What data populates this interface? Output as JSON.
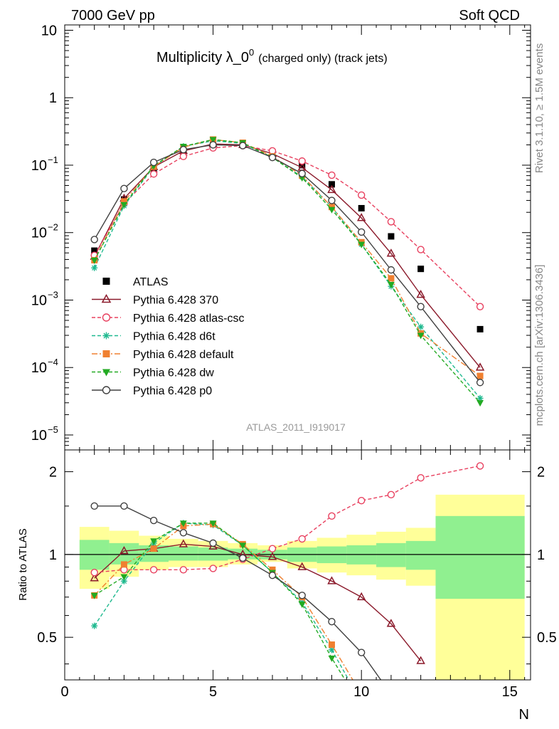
{
  "header": {
    "left": "7000 GeV pp",
    "right": "Soft QCD"
  },
  "side_labels": {
    "rivet": "Rivet 3.1.10, ≥ 1.5M events",
    "mcplots": "mcplots.cern.ch [arXiv:1306.3436]"
  },
  "chart_data": [
    {
      "type": "scatter",
      "title": "Multiplicity λ_0",
      "title_sup": "0",
      "subtitle": "(charged only) (track jets)",
      "watermark": "ATLAS_2011_I919017",
      "yscale": "log",
      "xlim": [
        0,
        15.7
      ],
      "ylim": [
        6e-06,
        12
      ],
      "yticks": [
        {
          "v": 10,
          "label": "10",
          "sup": ""
        },
        {
          "v": 1,
          "label": "1",
          "sup": ""
        },
        {
          "v": 0.1,
          "label": "10",
          "sup": "−1"
        },
        {
          "v": 0.01,
          "label": "10",
          "sup": "−2"
        },
        {
          "v": 0.001,
          "label": "10",
          "sup": "−3"
        },
        {
          "v": 0.0001,
          "label": "10",
          "sup": "−4"
        },
        {
          "v": 1e-05,
          "label": "10",
          "sup": "−5"
        }
      ],
      "legend_position": "middle-left",
      "x": [
        1,
        2,
        3,
        4,
        5,
        6,
        7,
        8,
        9,
        10,
        11,
        12,
        14
      ],
      "series": [
        {
          "name": "ATLAS",
          "color": "#000000",
          "marker": "square",
          "line": "none",
          "values": [
            0.0054,
            0.031,
            0.09,
            0.15,
            0.2,
            0.2,
            0.15,
            0.1,
            0.052,
            0.023,
            0.0088,
            0.0029,
            0.00037
          ]
        },
        {
          "name": "Pythia 6.428 370",
          "color": "#8b1a2b",
          "marker": "triangle-open",
          "line": "solid",
          "values": [
            0.0044,
            0.032,
            0.094,
            0.163,
            0.206,
            0.2,
            0.148,
            0.092,
            0.043,
            0.0165,
            0.0049,
            0.0012,
            0.0001
          ]
        },
        {
          "name": "Pythia 6.428 atlas-csc",
          "color": "#e8405f",
          "marker": "circle-open",
          "line": "dashed",
          "values": [
            0.0046,
            0.027,
            0.074,
            0.135,
            0.18,
            0.195,
            0.163,
            0.115,
            0.071,
            0.036,
            0.0145,
            0.0056,
            0.0008
          ]
        },
        {
          "name": "Pythia 6.428 d6t",
          "color": "#1fb98f",
          "marker": "star",
          "line": "dashed",
          "values": [
            0.003,
            0.025,
            0.095,
            0.19,
            0.23,
            0.21,
            0.13,
            0.067,
            0.024,
            0.0067,
            0.0016,
            0.0004,
            3.5e-05
          ]
        },
        {
          "name": "Pythia 6.428 default",
          "color": "#f08030",
          "marker": "square",
          "line": "dashdot",
          "values": [
            0.0039,
            0.029,
            0.095,
            0.185,
            0.24,
            0.215,
            0.135,
            0.07,
            0.024,
            0.0072,
            0.0021,
            0.00032,
            7.5e-05
          ]
        },
        {
          "name": "Pythia 6.428 dw",
          "color": "#22aa22",
          "marker": "triangle-down",
          "line": "dashed",
          "values": [
            0.0039,
            0.026,
            0.098,
            0.19,
            0.24,
            0.215,
            0.13,
            0.065,
            0.022,
            0.0067,
            0.0017,
            0.0003,
            3e-05
          ]
        },
        {
          "name": "Pythia 6.428 p0",
          "color": "#404040",
          "marker": "circle-open",
          "line": "solid",
          "values": [
            0.0079,
            0.045,
            0.11,
            0.17,
            0.2,
            0.195,
            0.13,
            0.075,
            0.03,
            0.0102,
            0.0028,
            0.0008,
            6e-05
          ]
        }
      ]
    },
    {
      "type": "line",
      "ylabel": "Ratio to ATLAS",
      "xlabel": "N",
      "yscale": "log",
      "xlim": [
        0,
        15.7
      ],
      "ylim": [
        0.35,
        2.4
      ],
      "yticks": [
        {
          "v": 2,
          "label": "2"
        },
        {
          "v": 1,
          "label": "1"
        },
        {
          "v": 0.5,
          "label": "0.5"
        }
      ],
      "xticks": [
        0,
        5,
        10,
        15
      ],
      "reference_line": 1,
      "uncertainty_bands": {
        "bins": [
          [
            0.5,
            1.5
          ],
          [
            1.5,
            2.5
          ],
          [
            2.5,
            3.5
          ],
          [
            3.5,
            4.5
          ],
          [
            4.5,
            5.5
          ],
          [
            5.5,
            6.5
          ],
          [
            6.5,
            7.5
          ],
          [
            7.5,
            8.5
          ],
          [
            8.5,
            9.5
          ],
          [
            9.5,
            10.5
          ],
          [
            10.5,
            11.5
          ],
          [
            11.5,
            12.5
          ],
          [
            12.5,
            15.5
          ]
        ],
        "inner": [
          [
            0.88,
            1.13
          ],
          [
            0.92,
            1.1
          ],
          [
            0.94,
            1.08
          ],
          [
            0.95,
            1.07
          ],
          [
            0.95,
            1.06
          ],
          [
            0.96,
            1.05
          ],
          [
            0.96,
            1.04
          ],
          [
            0.94,
            1.06
          ],
          [
            0.93,
            1.07
          ],
          [
            0.92,
            1.08
          ],
          [
            0.9,
            1.1
          ],
          [
            0.88,
            1.12
          ],
          [
            0.69,
            1.38
          ]
        ],
        "outer": [
          [
            0.75,
            1.26
          ],
          [
            0.83,
            1.22
          ],
          [
            0.88,
            1.17
          ],
          [
            0.9,
            1.14
          ],
          [
            0.9,
            1.12
          ],
          [
            0.92,
            1.1
          ],
          [
            0.94,
            1.08
          ],
          [
            0.89,
            1.12
          ],
          [
            0.86,
            1.15
          ],
          [
            0.84,
            1.18
          ],
          [
            0.81,
            1.21
          ],
          [
            0.77,
            1.25
          ],
          [
            0.35,
            1.65
          ]
        ]
      },
      "x": [
        1,
        2,
        3,
        4,
        5,
        6,
        7,
        8,
        9,
        10,
        11,
        12,
        14
      ],
      "series": [
        {
          "name": "Pythia 6.428 370",
          "color": "#8b1a2b",
          "marker": "triangle-open",
          "line": "solid",
          "values": [
            0.82,
            1.03,
            1.05,
            1.09,
            1.07,
            1.0,
            0.98,
            0.9,
            0.8,
            0.7,
            0.56,
            0.41,
            null
          ]
        },
        {
          "name": "Pythia 6.428 atlas-csc",
          "color": "#e8405f",
          "marker": "circle-open",
          "line": "dashed",
          "values": [
            0.86,
            0.88,
            0.88,
            0.88,
            0.89,
            0.96,
            1.05,
            1.14,
            1.38,
            1.57,
            1.65,
            1.9,
            2.1
          ]
        },
        {
          "name": "Pythia 6.428 d6t",
          "color": "#1fb98f",
          "marker": "star",
          "line": "dashed",
          "values": [
            0.55,
            0.8,
            1.1,
            1.3,
            1.28,
            1.08,
            0.86,
            0.67,
            0.45,
            0.29,
            null,
            null,
            null
          ]
        },
        {
          "name": "Pythia 6.428 default",
          "color": "#f08030",
          "marker": "square",
          "line": "dashdot",
          "values": [
            0.71,
            0.92,
            1.05,
            1.27,
            1.29,
            1.09,
            0.88,
            0.7,
            0.47,
            0.31,
            null,
            null,
            null
          ]
        },
        {
          "name": "Pythia 6.428 dw",
          "color": "#22aa22",
          "marker": "triangle-down",
          "line": "dashed",
          "values": [
            0.71,
            0.83,
            1.12,
            1.3,
            1.3,
            1.08,
            0.86,
            0.66,
            0.42,
            0.28,
            null,
            null,
            null
          ]
        },
        {
          "name": "Pythia 6.428 p0",
          "color": "#404040",
          "marker": "circle-open",
          "line": "solid",
          "values": [
            1.5,
            1.5,
            1.33,
            1.2,
            1.1,
            0.97,
            0.84,
            0.71,
            0.57,
            0.44,
            0.31,
            null,
            null
          ]
        }
      ]
    }
  ]
}
